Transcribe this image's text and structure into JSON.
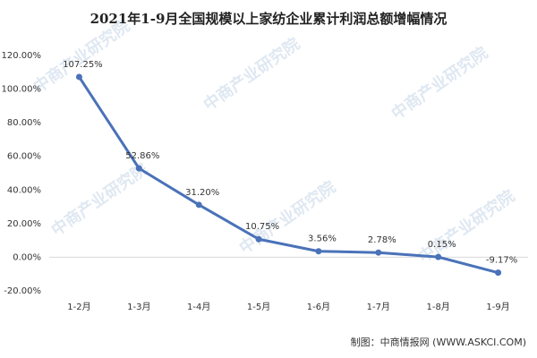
{
  "chart_data": {
    "type": "line",
    "title": "2021年1-9月全国规模以上家纺企业累计利润总额增幅情况",
    "categories": [
      "1-2月",
      "1-3月",
      "1-4月",
      "1-5月",
      "1-6月",
      "1-7月",
      "1-8月",
      "1-9月"
    ],
    "series": [
      {
        "color": "#4a72b8",
        "values": [
          107.25,
          52.86,
          31.2,
          10.75,
          3.56,
          2.78,
          0.15,
          -9.17
        ],
        "value_labels": [
          "107.25%",
          "52.86%",
          "31.20%",
          "10.75%",
          "3.56%",
          "2.78%",
          "0.15%",
          "-9.17%"
        ]
      }
    ],
    "ylim": [
      -20,
      120
    ],
    "yticks": [
      {
        "value": -20,
        "label": "-20.00%"
      },
      {
        "value": 0,
        "label": "0.00%"
      },
      {
        "value": 20,
        "label": "20.00%"
      },
      {
        "value": 40,
        "label": "40.00%"
      },
      {
        "value": 60,
        "label": "60.00%"
      },
      {
        "value": 80,
        "label": "80.00%"
      },
      {
        "value": 100,
        "label": "100.00%"
      },
      {
        "value": 120,
        "label": "120.00%"
      }
    ],
    "grid": false,
    "source": "制图：中商情报网 (WWW.ASKCI.COM)",
    "watermark": "中商产业研究院"
  }
}
